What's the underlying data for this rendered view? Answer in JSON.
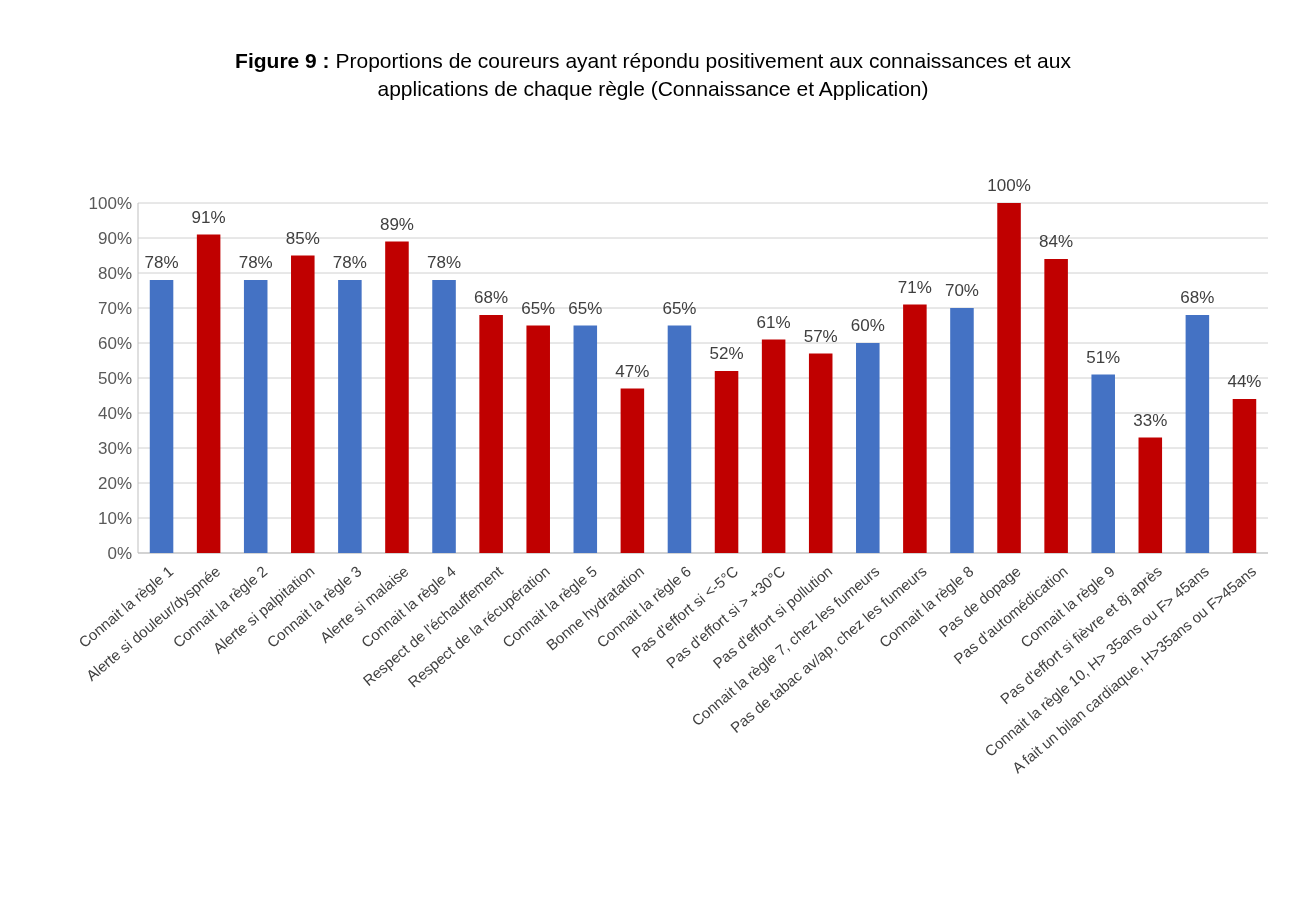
{
  "chart_data": {
    "type": "bar",
    "title": "Figure 9 : Proportions de coureurs ayant répondu positivement aux connaissances et aux applications de chaque règle  (Connaissance et Application)",
    "categories": [
      "Connait la règle 1",
      "Alerte si douleur/dyspnée",
      "Connait la règle 2",
      "Alerte si palpitation",
      "Connait la règle 3",
      "Alerte si malaise",
      "Connait la règle 4",
      "Respect de l'échauffement",
      "Respect de la récupération",
      "Connait la règle 5",
      "Bonne hydratation",
      "Connait la règle 6",
      "Pas d'effort si <-5°C",
      "Pas d'effort si > +30°C",
      "Pas d'effort si pollution",
      "Connait la règle 7, chez les fumeurs",
      "Pas de tabac av/ap, chez les fumeurs",
      "Connait la règle 8",
      "Pas de dopage",
      "Pas d'automédication",
      "Connait la règle 9",
      "Pas d'effort si fièvre et 8j après",
      "Connait la règle 10, H> 35ans ou F> 45ans",
      "A fait un bilan cardiaque, H>35ans ou F>45ans"
    ],
    "values": [
      78,
      91,
      78,
      85,
      78,
      89,
      78,
      68,
      65,
      65,
      47,
      65,
      52,
      61,
      57,
      60,
      71,
      70,
      100,
      84,
      51,
      33,
      68,
      44
    ],
    "value_labels": [
      "78%",
      "91%",
      "78%",
      "85%",
      "78%",
      "89%",
      "78%",
      "68%",
      "65%",
      "65%",
      "47%",
      "65%",
      "52%",
      "61%",
      "57%",
      "60%",
      "71%",
      "70%",
      "100%",
      "84%",
      "51%",
      "33%",
      "68%",
      "44%"
    ],
    "colors": [
      "#4472c4",
      "#c00000",
      "#4472c4",
      "#c00000",
      "#4472c4",
      "#c00000",
      "#4472c4",
      "#c00000",
      "#c00000",
      "#4472c4",
      "#c00000",
      "#4472c4",
      "#c00000",
      "#c00000",
      "#c00000",
      "#4472c4",
      "#c00000",
      "#4472c4",
      "#c00000",
      "#c00000",
      "#4472c4",
      "#c00000",
      "#4472c4",
      "#c00000"
    ],
    "ylim": [
      0,
      100
    ],
    "yticks": [
      {
        "value": 0,
        "label": "0%"
      },
      {
        "value": 10,
        "label": "10%"
      },
      {
        "value": 20,
        "label": "20%"
      },
      {
        "value": 30,
        "label": "30%"
      },
      {
        "value": 40,
        "label": "40%"
      },
      {
        "value": 50,
        "label": "50%"
      },
      {
        "value": 60,
        "label": "60%"
      },
      {
        "value": 70,
        "label": "70%"
      },
      {
        "value": 80,
        "label": "80%"
      },
      {
        "value": 90,
        "label": "90%"
      },
      {
        "value": 100,
        "label": "100%"
      }
    ],
    "grid": "y"
  }
}
